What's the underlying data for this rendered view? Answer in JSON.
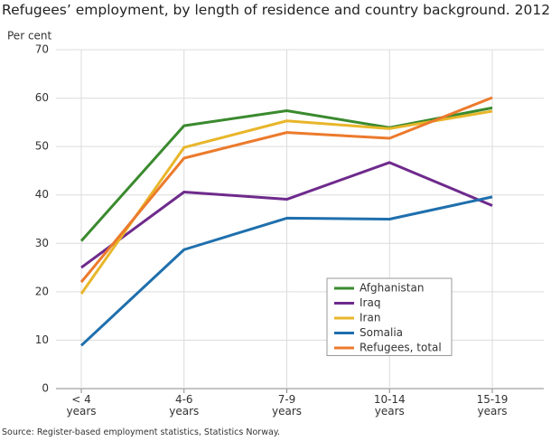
{
  "chart_data": {
    "type": "line",
    "title": "Refugees’ employment, by length of residence and country background. 2012",
    "y_label": "Per cent",
    "source": "Source: Register-based employment statistics, Statistics Norway.",
    "categories": [
      "< 4 years",
      "4-6 years",
      "7-9 years",
      "10-14 years",
      "15-19 years"
    ],
    "series": [
      {
        "name": "Afghanistan",
        "color": "#3a8a2e",
        "values": [
          30.5,
          54.3,
          57.4,
          53.9,
          58.0
        ]
      },
      {
        "name": "Iraq",
        "color": "#6e2a8c",
        "values": [
          25.0,
          40.6,
          39.1,
          46.7,
          37.8
        ]
      },
      {
        "name": "Iran",
        "color": "#e8b62a",
        "values": [
          19.6,
          49.8,
          55.3,
          53.7,
          57.3
        ]
      },
      {
        "name": "Somalia",
        "color": "#1f6fad",
        "values": [
          8.9,
          28.7,
          35.2,
          35.0,
          39.6
        ]
      },
      {
        "name": "Refugees, total",
        "color": "#ec7a2c",
        "values": [
          22.0,
          47.6,
          52.9,
          51.7,
          60.1
        ]
      }
    ],
    "ylim": [
      0,
      70
    ],
    "yticks": [
      0,
      10,
      20,
      30,
      40,
      50,
      60,
      70
    ],
    "grid": true
  }
}
